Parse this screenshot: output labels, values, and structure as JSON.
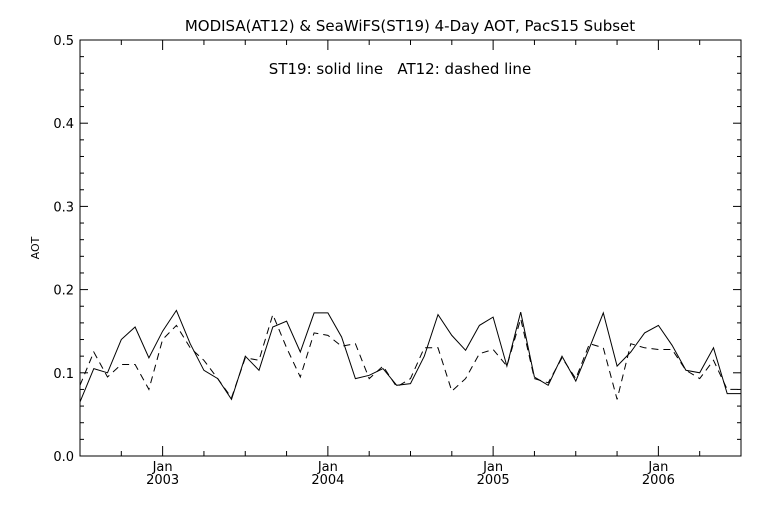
{
  "chart_data": {
    "type": "line",
    "title": "MODISA(AT12) & SeaWiFS(ST19) 4-Day AOT, PacS15 Subset",
    "annotation": "ST19: solid line   AT12: dashed line",
    "ylabel": "AOT",
    "xlabel": "",
    "ylim": [
      0.0,
      0.5
    ],
    "xlim": [
      "2002-07",
      "2006-07"
    ],
    "yticks": [
      "0.0",
      "0.1",
      "0.2",
      "0.3",
      "0.4",
      "0.5"
    ],
    "xticks": [
      {
        "month": "Jan",
        "year": "2003",
        "date": "2003-01"
      },
      {
        "month": "Jan",
        "year": "2004",
        "date": "2004-01"
      },
      {
        "month": "Jan",
        "year": "2005",
        "date": "2005-01"
      },
      {
        "month": "Jan",
        "year": "2006",
        "date": "2006-01"
      }
    ],
    "grid": false,
    "series": [
      {
        "style": "solid",
        "x": [
          "2002-07",
          "2002-08",
          "2002-09",
          "2002-10",
          "2002-11",
          "2002-12",
          "2003-01",
          "2003-02",
          "2003-03",
          "2003-04",
          "2003-05",
          "2003-06",
          "2003-07",
          "2003-08",
          "2003-09",
          "2003-10",
          "2003-11",
          "2003-12",
          "2004-01",
          "2004-02",
          "2004-03",
          "2004-04",
          "2004-05",
          "2004-06",
          "2004-07",
          "2004-08",
          "2004-09",
          "2004-10",
          "2004-11",
          "2004-12",
          "2005-01",
          "2005-02",
          "2005-03",
          "2005-04",
          "2005-05",
          "2005-06",
          "2005-07",
          "2005-08",
          "2005-09",
          "2005-10",
          "2005-11",
          "2005-12",
          "2006-01",
          "2006-02",
          "2006-03",
          "2006-04",
          "2006-05",
          "2006-06",
          "2006-07"
        ],
        "values": [
          0.065,
          0.105,
          0.1,
          0.14,
          0.155,
          0.118,
          0.15,
          0.175,
          0.135,
          0.103,
          0.093,
          0.068,
          0.12,
          0.103,
          0.155,
          0.162,
          0.125,
          0.172,
          0.172,
          0.143,
          0.093,
          0.097,
          0.105,
          0.085,
          0.087,
          0.12,
          0.17,
          0.145,
          0.127,
          0.157,
          0.167,
          0.108,
          0.173,
          0.095,
          0.085,
          0.12,
          0.09,
          0.13,
          0.172,
          0.108,
          0.125,
          0.148,
          0.157,
          0.133,
          0.103,
          0.1,
          0.13,
          0.075,
          0.075
        ]
      },
      {
        "style": "dashed",
        "x": [
          "2002-07",
          "2002-08",
          "2002-09",
          "2002-10",
          "2002-11",
          "2002-12",
          "2003-01",
          "2003-02",
          "2003-03",
          "2003-04",
          "2003-05",
          "2003-06",
          "2003-07",
          "2003-08",
          "2003-09",
          "2003-10",
          "2003-11",
          "2003-12",
          "2004-01",
          "2004-02",
          "2004-03",
          "2004-04",
          "2004-05",
          "2004-06",
          "2004-07",
          "2004-08",
          "2004-09",
          "2004-10",
          "2004-11",
          "2004-12",
          "2005-01",
          "2005-02",
          "2005-03",
          "2005-04",
          "2005-05",
          "2005-06",
          "2005-07",
          "2005-08",
          "2005-09",
          "2005-10",
          "2005-11",
          "2005-12",
          "2006-01",
          "2006-02",
          "2006-03",
          "2006-04",
          "2006-05",
          "2006-06",
          "2006-07"
        ],
        "values": [
          0.085,
          0.125,
          0.095,
          0.11,
          0.11,
          0.08,
          0.14,
          0.157,
          0.13,
          0.115,
          0.093,
          0.07,
          0.118,
          0.115,
          0.17,
          0.13,
          0.095,
          0.148,
          0.145,
          0.132,
          0.135,
          0.093,
          0.108,
          0.083,
          0.093,
          0.13,
          0.13,
          0.078,
          0.093,
          0.123,
          0.128,
          0.108,
          0.165,
          0.093,
          0.088,
          0.118,
          0.093,
          0.135,
          0.13,
          0.068,
          0.135,
          0.13,
          0.128,
          0.128,
          0.103,
          0.093,
          0.115,
          0.08,
          0.08
        ]
      }
    ]
  }
}
